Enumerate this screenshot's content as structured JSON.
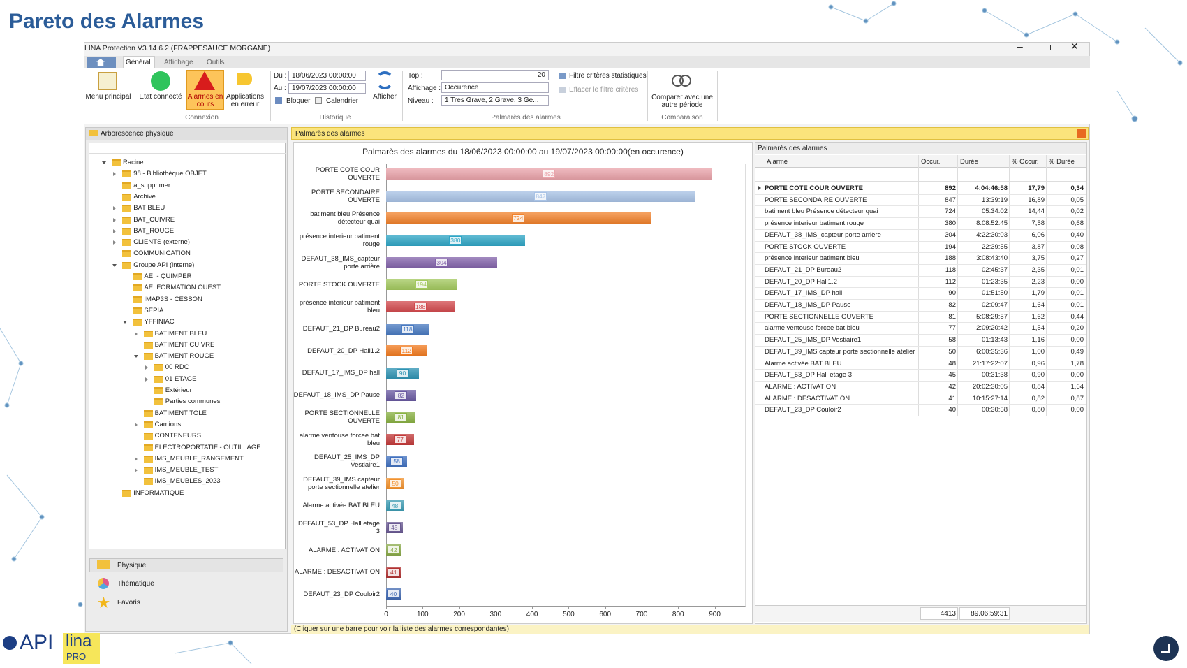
{
  "header": {
    "title": "Pareto des Alarmes"
  },
  "window": {
    "title": "LINA Protection  V3.14.6.2  (FRAPPESAUCE MORGANE)"
  },
  "tabs": [
    "Général",
    "Affichage",
    "Outils"
  ],
  "ribbon": {
    "connexion": {
      "label": "Connexion",
      "buttons": [
        "Menu principal",
        "Etat connecté",
        "Alarmes en cours",
        "Applications en erreur"
      ]
    },
    "historique": {
      "label": "Historique",
      "du_label": "Du :",
      "du": "18/06/2023 00:00:00",
      "au_label": "Au :",
      "au": "19/07/2023 00:00:00",
      "bloquer": "Bloquer",
      "calendrier": "Calendrier"
    },
    "afficher": "Afficher",
    "palmares": {
      "label": "Palmarès des alarmes",
      "top_label": "Top :",
      "top": "20",
      "affichage_label": "Affichage :",
      "affichage": "Occurence",
      "niveau_label": "Niveau :",
      "niveau": "1 Tres Grave,  2 Grave,  3 Ge...",
      "filtre": "Filtre critères statistiques",
      "effacer": "Effacer le filtre critères"
    },
    "comparaison": {
      "label": "Comparaison",
      "button": "Comparer avec une autre période"
    }
  },
  "left_panel": {
    "title": "Arborescence physique",
    "tree": [
      {
        "label": "Racine",
        "expanded": true,
        "children": [
          {
            "label": "98 - Bibliothèque OBJET",
            "expandable": true
          },
          {
            "label": "a_supprimer"
          },
          {
            "label": "Archive"
          },
          {
            "label": "BAT BLEU",
            "expandable": true
          },
          {
            "label": "BAT_CUIVRE",
            "expandable": true
          },
          {
            "label": "BAT_ROUGE",
            "expandable": true
          },
          {
            "label": "CLIENTS (externe)",
            "expandable": true
          },
          {
            "label": "COMMUNICATION"
          },
          {
            "label": "Groupe API (interne)",
            "expanded": true,
            "children": [
              {
                "label": "AEI - QUIMPER"
              },
              {
                "label": "AEI FORMATION OUEST"
              },
              {
                "label": "IMAP3S - CESSON"
              },
              {
                "label": "SEPIA"
              },
              {
                "label": "YFFINIAC",
                "expanded": true,
                "children": [
                  {
                    "label": "BATIMENT BLEU",
                    "expandable": true
                  },
                  {
                    "label": "BATIMENT CUIVRE"
                  },
                  {
                    "label": "BATIMENT ROUGE",
                    "expanded": true,
                    "children": [
                      {
                        "label": "00 RDC",
                        "expandable": true
                      },
                      {
                        "label": "01 ETAGE",
                        "expandable": true
                      },
                      {
                        "label": "Extérieur"
                      },
                      {
                        "label": "Parties communes"
                      }
                    ]
                  },
                  {
                    "label": "BATIMENT TOLE"
                  },
                  {
                    "label": "Camions",
                    "expandable": true
                  },
                  {
                    "label": "CONTENEURS"
                  },
                  {
                    "label": "ELECTROPORTATIF - OUTILLAGE"
                  },
                  {
                    "label": "IMS_MEUBLE_RANGEMENT",
                    "expandable": true
                  },
                  {
                    "label": "IMS_MEUBLE_TEST",
                    "expandable": true
                  },
                  {
                    "label": "IMS_MEUBLES_2023"
                  }
                ]
              }
            ]
          },
          {
            "label": "INFORMATIQUE"
          }
        ]
      }
    ],
    "nav": [
      "Physique",
      "Thématique",
      "Favoris"
    ]
  },
  "middle_panel": {
    "title": "Palmarès des alarmes",
    "hint": "(Cliquer sur une barre pour voir la liste des alarmes correspondantes)"
  },
  "chart_data": {
    "type": "bar",
    "orientation": "horizontal",
    "title": "Palmarès des alarmes du 18/06/2023 00:00:00 au 19/07/2023 00:00:00(en occurence)",
    "categories": [
      "PORTE COTE COUR OUVERTE",
      "PORTE SECONDAIRE OUVERTE",
      "batiment bleu Présence détecteur quai",
      "présence interieur batiment rouge",
      "DEFAUT_38_IMS_capteur porte arrière",
      "PORTE STOCK OUVERTE",
      "présence interieur batiment bleu",
      "DEFAUT_21_DP Bureau2",
      "DEFAUT_20_DP Hall1.2",
      "DEFAUT_17_IMS_DP hall",
      "DEFAUT_18_IMS_DP Pause",
      "PORTE SECTIONNELLE OUVERTE",
      "alarme ventouse forcee  bat bleu",
      "DEFAUT_25_IMS_DP Vestiaire1",
      "DEFAUT_39_IMS capteur porte sectionnelle atelier",
      "Alarme activée BAT BLEU",
      "DEFAUT_53_DP Hall etage 3",
      "ALARME : ACTIVATION",
      "ALARME : DESACTIVATION",
      "DEFAUT_23_DP Couloir2"
    ],
    "values": [
      892,
      847,
      724,
      380,
      304,
      194,
      188,
      118,
      112,
      90,
      82,
      81,
      77,
      58,
      50,
      48,
      45,
      42,
      41,
      40
    ],
    "colors": [
      "#eaa3aa",
      "#a9c3e6",
      "#f2822c",
      "#2fa6c6",
      "#8262aa",
      "#a3c95e",
      "#d2484c",
      "#4a7bc2",
      "#f27a1e",
      "#2f94b4",
      "#6a5aa2",
      "#8ab244",
      "#c23a3a",
      "#4272c0",
      "#f2922e",
      "#3a9ab2",
      "#6a5a92",
      "#8aaa4a",
      "#b23232",
      "#426ab2"
    ],
    "xlim": [
      0,
      985
    ],
    "xticks": [
      0,
      100,
      200,
      300,
      400,
      500,
      600,
      700,
      800,
      900
    ],
    "grid": false
  },
  "right_panel": {
    "title": "Palmarès des alarmes",
    "columns": [
      "Alarme",
      "Occur.",
      "Durée",
      "% Occur.",
      "% Durée"
    ],
    "rows": [
      [
        "PORTE COTE COUR OUVERTE",
        "892",
        "4:04:46:58",
        "17,79",
        "0,34"
      ],
      [
        "PORTE SECONDAIRE OUVERTE",
        "847",
        "13:39:19",
        "16,89",
        "0,05"
      ],
      [
        "batiment bleu Présence détecteur quai",
        "724",
        "05:34:02",
        "14,44",
        "0,02"
      ],
      [
        "présence interieur batiment rouge",
        "380",
        "8:08:52:45",
        "7,58",
        "0,68"
      ],
      [
        "DEFAUT_38_IMS_capteur porte arrière",
        "304",
        "4:22:30:03",
        "6,06",
        "0,40"
      ],
      [
        "PORTE STOCK OUVERTE",
        "194",
        "22:39:55",
        "3,87",
        "0,08"
      ],
      [
        "présence interieur batiment bleu",
        "188",
        "3:08:43:40",
        "3,75",
        "0,27"
      ],
      [
        "DEFAUT_21_DP Bureau2",
        "118",
        "02:45:37",
        "2,35",
        "0,01"
      ],
      [
        "DEFAUT_20_DP Hall1.2",
        "112",
        "01:23:35",
        "2,23",
        "0,00"
      ],
      [
        "DEFAUT_17_IMS_DP hall",
        "90",
        "01:51:50",
        "1,79",
        "0,01"
      ],
      [
        "DEFAUT_18_IMS_DP Pause",
        "82",
        "02:09:47",
        "1,64",
        "0,01"
      ],
      [
        "PORTE SECTIONNELLE OUVERTE",
        "81",
        "5:08:29:57",
        "1,62",
        "0,44"
      ],
      [
        "alarme ventouse forcee  bat bleu",
        "77",
        "2:09:20:42",
        "1,54",
        "0,20"
      ],
      [
        "DEFAUT_25_IMS_DP Vestiaire1",
        "58",
        "01:13:43",
        "1,16",
        "0,00"
      ],
      [
        "DEFAUT_39_IMS capteur porte sectionnelle atelier",
        "50",
        "6:00:35:36",
        "1,00",
        "0,49"
      ],
      [
        "Alarme activée BAT BLEU",
        "48",
        "21:17:22:07",
        "0,96",
        "1,78"
      ],
      [
        "DEFAUT_53_DP Hall etage 3",
        "45",
        "00:31:38",
        "0,90",
        "0,00"
      ],
      [
        "ALARME : ACTIVATION",
        "42",
        "20:02:30:05",
        "0,84",
        "1,64"
      ],
      [
        "ALARME : DESACTIVATION",
        "41",
        "10:15:27:14",
        "0,82",
        "0,87"
      ],
      [
        "DEFAUT_23_DP Couloir2",
        "40",
        "00:30:58",
        "0,80",
        "0,00"
      ]
    ],
    "totals": {
      "occur": "4413",
      "duree": "89.06:59:31"
    }
  },
  "logo": {
    "api": "API",
    "lina": "lina",
    "pro": "PRO"
  }
}
